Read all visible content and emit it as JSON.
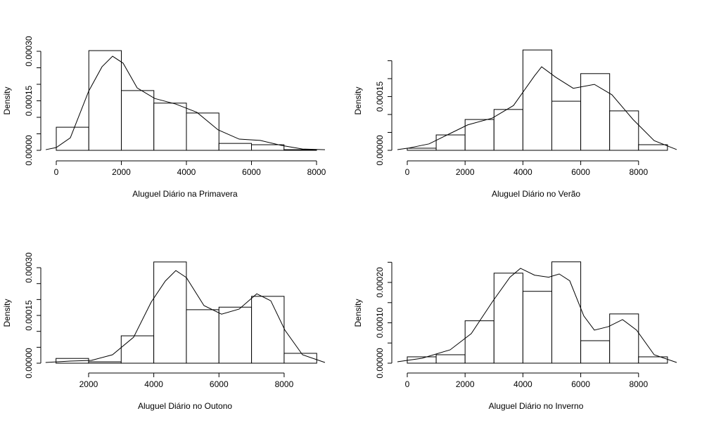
{
  "chart_data": [
    {
      "type": "histogram",
      "xlabel": "Aluguel Diário na Primavera",
      "ylabel": "Density",
      "color": "#000000",
      "bins": [
        0,
        1000,
        2000,
        3000,
        4000,
        5000,
        6000,
        7000,
        8000
      ],
      "values": [
        7e-05,
        0.000302,
        0.000181,
        0.000143,
        0.000113,
        2.1e-05,
        1.7e-05,
        2e-06
      ],
      "density": {
        "x": [
          -324,
          0,
          432,
          995,
          1405,
          1730,
          2054,
          2486,
          3027,
          3676,
          4324,
          4973,
          5622,
          6270,
          6919,
          7568,
          8259
        ],
        "y": [
          2e-06,
          8.5e-06,
          3.8e-05,
          0.000179,
          0.000253,
          0.000285,
          0.000264,
          0.000189,
          0.000157,
          0.00014,
          0.000115,
          6.2e-05,
          3.4e-05,
          3e-05,
          1.5e-05,
          4e-06,
          2e-06
        ]
      },
      "xlim": [
        -476,
        8432
      ],
      "ylim": [
        -1.7e-05,
        0.000317
      ],
      "xticks": [
        0,
        2000,
        4000,
        6000,
        8000
      ],
      "yticks": [
        {
          "value": 0,
          "label": "0.00000"
        },
        {
          "value": 5e-05,
          "label": null
        },
        {
          "value": 0.0001,
          "label": null
        },
        {
          "value": 0.00015,
          "label": "0.00015"
        },
        {
          "value": 0.0002,
          "label": null
        },
        {
          "value": 0.00025,
          "label": null
        },
        {
          "value": 0.0003,
          "label": "0.00030"
        }
      ]
    },
    {
      "type": "histogram",
      "xlabel": "Aluguel Diário no Verão",
      "ylabel": "Density",
      "color": "#000000",
      "bins": [
        0,
        1000,
        2000,
        3000,
        4000,
        5000,
        6000,
        7000,
        8000,
        9000
      ],
      "values": [
        5.9e-06,
        4.3e-05,
        8.6e-05,
        0.000114,
        0.00028,
        0.000137,
        0.000214,
        0.00011,
        1.57e-05
      ],
      "density": {
        "x": [
          -340,
          24,
          754,
          1484,
          2092,
          2944,
          3674,
          4404,
          4647,
          5134,
          5742,
          6472,
          7080,
          7810,
          8540,
          9319
        ],
        "y": [
          2e-06,
          6e-06,
          1.8e-05,
          4.7e-05,
          7.1e-05,
          9e-05,
          0.000125,
          0.000208,
          0.000233,
          0.000204,
          0.000173,
          0.000184,
          0.000155,
          8.6e-05,
          2.7e-05,
          2e-06
        ]
      },
      "xlim": [
        -535,
        9489
      ],
      "ylim": [
        -1.57e-05,
        0.000292
      ],
      "xticks": [
        0,
        2000,
        4000,
        6000,
        8000
      ],
      "yticks": [
        {
          "value": 0,
          "label": "0.00000"
        },
        {
          "value": 5e-05,
          "label": null
        },
        {
          "value": 0.0001,
          "label": null
        },
        {
          "value": 0.00015,
          "label": "0.00015"
        },
        {
          "value": 0.0002,
          "label": null
        },
        {
          "value": 0.00025,
          "label": null
        }
      ]
    },
    {
      "type": "histogram",
      "xlabel": "Aluguel Diário no Outono",
      "ylabel": "Density",
      "color": "#000000",
      "bins": [
        1000,
        2000,
        3000,
        4000,
        5000,
        6000,
        7000,
        8000,
        9000
      ],
      "values": [
        1.5e-05,
        4.4e-06,
        8.6e-05,
        0.000318,
        0.000168,
        0.000176,
        0.00021,
        3.1e-05
      ],
      "density": {
        "x": [
          680,
          1436,
          2086,
          2733,
          3381,
          3921,
          4353,
          4677,
          5000,
          5540,
          6080,
          6620,
          7160,
          7591,
          8023,
          8563,
          9252
        ],
        "y": [
          2.2e-06,
          6.6e-06,
          8.8e-06,
          2.65e-05,
          8.16e-05,
          0.000192,
          0.000258,
          0.000291,
          0.000269,
          0.000181,
          0.000154,
          0.00017,
          0.000218,
          0.000196,
          0.000104,
          2.65e-05,
          2.2e-06
        ]
      },
      "xlim": [
        533,
        9426
      ],
      "ylim": [
        -1.54e-05,
        0.000331
      ],
      "xticks": [
        2000,
        4000,
        6000,
        8000
      ],
      "yticks": [
        {
          "value": 0,
          "label": "0.00000"
        },
        {
          "value": 5e-05,
          "label": null
        },
        {
          "value": 0.0001,
          "label": null
        },
        {
          "value": 0.00015,
          "label": "0.00015"
        },
        {
          "value": 0.0002,
          "label": null
        },
        {
          "value": 0.00025,
          "label": null
        },
        {
          "value": 0.0003,
          "label": "0.00030"
        }
      ]
    },
    {
      "type": "histogram",
      "xlabel": "Aluguel Diário no Inverno",
      "ylabel": "Density",
      "color": "#000000",
      "bins": [
        0,
        1000,
        2000,
        3000,
        4000,
        5000,
        6000,
        7000,
        8000,
        9000
      ],
      "values": [
        1.57e-05,
        2.09e-05,
        0.000105,
        0.000223,
        0.000178,
        0.000251,
        5.57e-05,
        0.000122,
        1.57e-05
      ],
      "density": {
        "x": [
          -340,
          511,
          1484,
          2214,
          2944,
          3552,
          3917,
          4404,
          4891,
          5256,
          5620,
          6107,
          6472,
          6959,
          7445,
          7932,
          8540,
          9319
        ],
        "y": [
          3.5e-06,
          1.22e-05,
          3.31e-05,
          7.32e-05,
          0.000152,
          0.000213,
          0.000235,
          0.000218,
          0.000213,
          0.000221,
          0.000204,
          0.000117,
          8.19e-05,
          9.06e-05,
          0.000108,
          8.19e-05,
          2.09e-05,
          1.7e-06
        ]
      },
      "xlim": [
        -535,
        9489
      ],
      "ylim": [
        -1.22e-05,
        0.000261
      ],
      "xticks": [
        0,
        2000,
        4000,
        6000,
        8000
      ],
      "yticks": [
        {
          "value": 0,
          "label": "0.00000"
        },
        {
          "value": 5e-05,
          "label": null
        },
        {
          "value": 0.0001,
          "label": "0.00010"
        },
        {
          "value": 0.00015,
          "label": null
        },
        {
          "value": 0.0002,
          "label": "0.00020"
        },
        {
          "value": 0.00025,
          "label": null
        }
      ]
    }
  ]
}
